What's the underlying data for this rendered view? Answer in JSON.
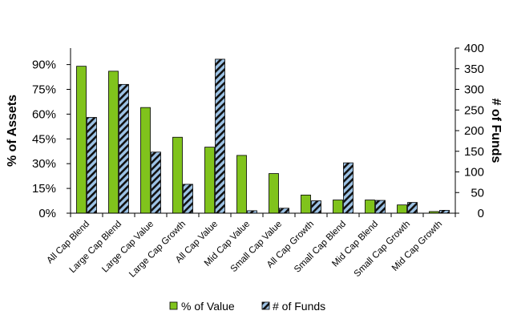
{
  "chart_data": {
    "type": "bar",
    "categories": [
      "All Cap Blend",
      "Large Cap Blend",
      "Large Cap Value",
      "Large Cap Growth",
      "All Cap Value",
      "Mid Cap Value",
      "Small Cap Value",
      "All Cap Growth",
      "Small Cap Blend",
      "Mid Cap Blend",
      "Small Cap Growth",
      "Mid Cap Growth"
    ],
    "series": [
      {
        "name": "% of Value",
        "axis": "left",
        "color": "#80c31c",
        "values": [
          89,
          86,
          64,
          46,
          40,
          35,
          24,
          11,
          8,
          8,
          5,
          1
        ]
      },
      {
        "name": "# of Funds",
        "axis": "right",
        "color": "#9dc3e6",
        "pattern": "diagonal-stripes",
        "values": [
          232,
          312,
          148,
          70,
          373,
          6,
          12,
          30,
          122,
          31,
          26,
          7
        ]
      }
    ],
    "title": "",
    "xlabel": "",
    "ylabel": "% of Assets",
    "ylabel_right": "# of Funds",
    "ylim": [
      0,
      100
    ],
    "ylim_right": [
      0,
      400
    ],
    "yticks": [
      "0%",
      "15%",
      "30%",
      "45%",
      "60%",
      "75%",
      "90%"
    ],
    "yticks_right": [
      "0",
      "50",
      "100",
      "150",
      "200",
      "250",
      "300",
      "350",
      "400"
    ],
    "grid": false,
    "legend": "bottom"
  }
}
